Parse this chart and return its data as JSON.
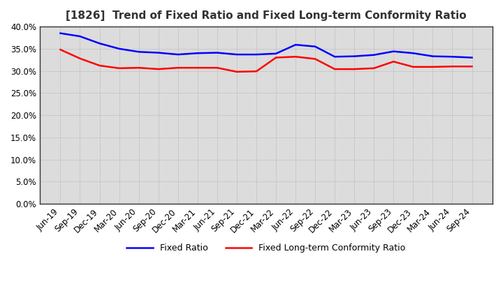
{
  "title": "[1826]  Trend of Fixed Ratio and Fixed Long-term Conformity Ratio",
  "x_labels": [
    "Jun-19",
    "Sep-19",
    "Dec-19",
    "Mar-20",
    "Jun-20",
    "Sep-20",
    "Dec-20",
    "Mar-21",
    "Jun-21",
    "Sep-21",
    "Dec-21",
    "Mar-22",
    "Jun-22",
    "Sep-22",
    "Dec-22",
    "Mar-23",
    "Jun-23",
    "Sep-23",
    "Dec-23",
    "Mar-24",
    "Jun-24",
    "Sep-24"
  ],
  "fixed_ratio": [
    38.5,
    37.8,
    36.2,
    35.0,
    34.3,
    34.1,
    33.7,
    34.0,
    34.1,
    33.7,
    33.7,
    33.9,
    35.9,
    35.5,
    33.2,
    33.3,
    33.6,
    34.4,
    34.0,
    33.3,
    33.2,
    33.0
  ],
  "fixed_lt_ratio": [
    34.8,
    32.8,
    31.2,
    30.6,
    30.7,
    30.4,
    30.7,
    30.7,
    30.7,
    29.8,
    29.9,
    33.0,
    33.2,
    32.7,
    30.4,
    30.4,
    30.6,
    32.1,
    30.9,
    30.9,
    31.0,
    31.0
  ],
  "fixed_ratio_color": "#0000FF",
  "fixed_lt_ratio_color": "#FF0000",
  "ylim": [
    0,
    40
  ],
  "yticks": [
    0,
    5,
    10,
    15,
    20,
    25,
    30,
    35,
    40
  ],
  "background_color": "#FFFFFF",
  "plot_bg_color": "#DCDCDC",
  "grid_color": "#888888",
  "title_fontsize": 11,
  "legend_fontsize": 9,
  "tick_fontsize": 8.5,
  "title_color": "#333333"
}
